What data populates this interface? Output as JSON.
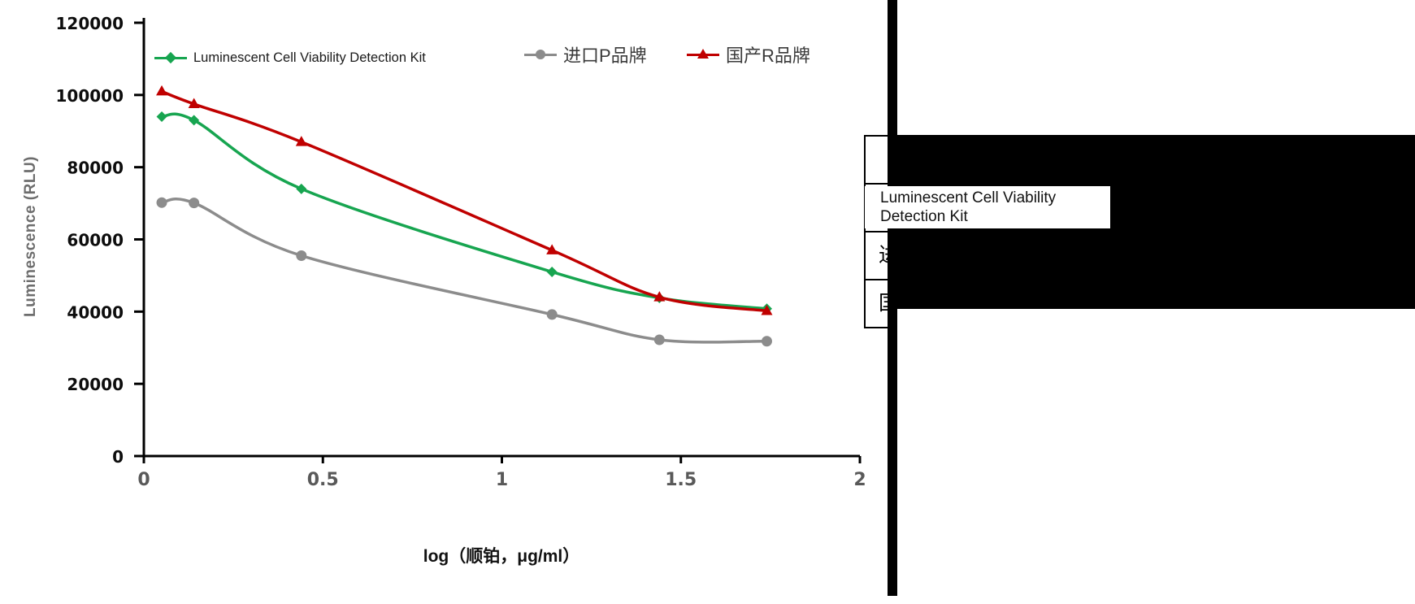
{
  "chart_data": {
    "type": "line",
    "title": "",
    "xlabel": "log（顺铂，μg/ml）",
    "ylabel": "Luminescence (RLU)",
    "x": [
      0.05,
      0.14,
      0.44,
      1.14,
      1.44,
      1.74
    ],
    "xlim": [
      0,
      2
    ],
    "ylim": [
      0,
      120000
    ],
    "x_ticks": [
      0,
      0.5,
      1,
      1.5,
      2
    ],
    "y_ticks": [
      0,
      20000,
      40000,
      60000,
      80000,
      100000,
      120000
    ],
    "grid": false,
    "legend_position": "top-inside",
    "series": [
      {
        "name": "Luminescent Cell Viability Detection Kit",
        "color": "#17a550",
        "marker": "diamond",
        "values": [
          94000,
          93000,
          74000,
          51000,
          43800,
          40800
        ]
      },
      {
        "name": "进口P品牌",
        "color": "#8c8c8c",
        "marker": "circle",
        "values": [
          70200,
          70100,
          55500,
          39200,
          32200,
          31800
        ]
      },
      {
        "name": "国产R品牌",
        "color": "#c00000",
        "marker": "triangle",
        "values": [
          101000,
          97500,
          87000,
          57000,
          44000,
          40200
        ]
      }
    ]
  },
  "table": {
    "row_labels": [
      "",
      "Luminescent Cell Viability Detection Kit",
      "进口P品牌",
      "国产R品牌"
    ]
  }
}
